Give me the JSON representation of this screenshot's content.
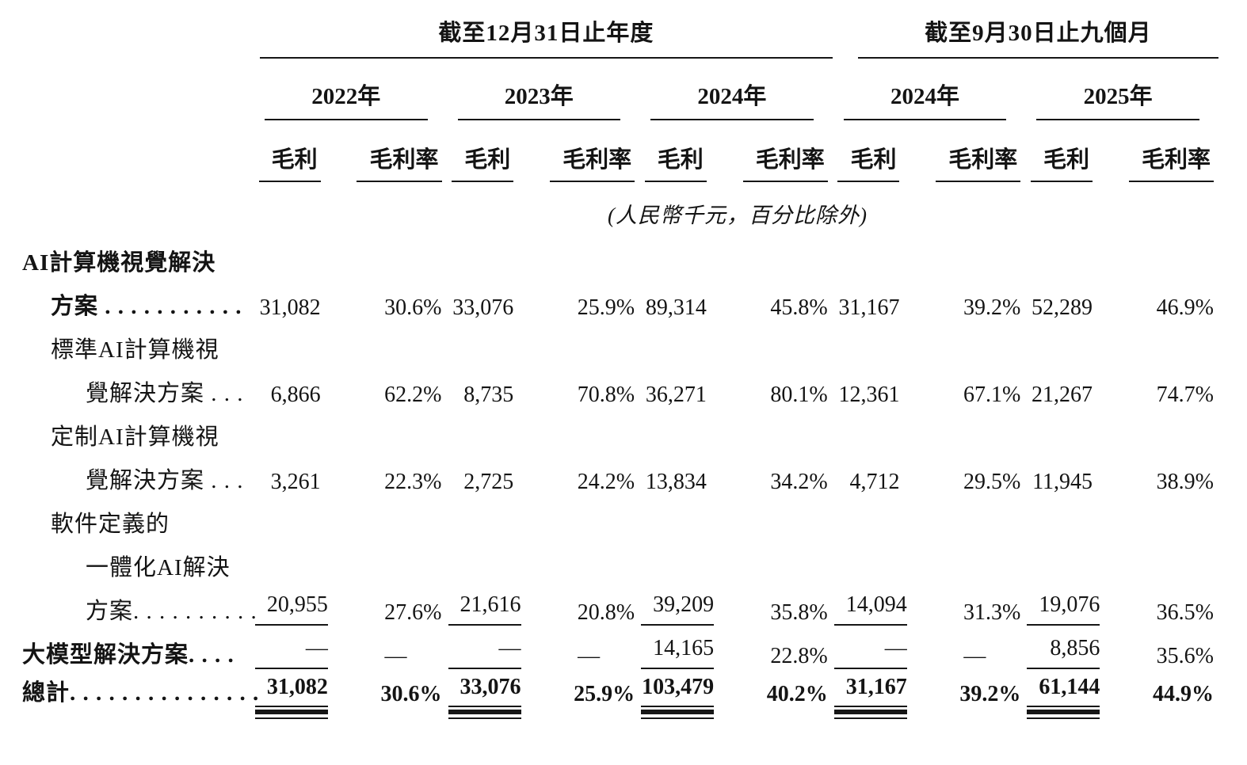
{
  "table": {
    "group1_title": "截至12月31日止年度",
    "group2_title": "截至9月30日止九個月",
    "years": [
      "2022年",
      "2023年",
      "2024年",
      "2024年",
      "2025年"
    ],
    "subcols": {
      "gp": "毛利",
      "margin": "毛利率"
    },
    "unit_note": "(人民幣千元，百分比除外)",
    "rows": [
      {
        "label": "AI計算機視覺解決"
      },
      {
        "label": "方案 . . . . . . . . . . .",
        "c": [
          "31,082",
          "30.6%",
          "33,076",
          "25.9%",
          "89,314",
          "45.8%",
          "31,167",
          "39.2%",
          "52,289",
          "46.9%"
        ]
      },
      {
        "label": "標準AI計算機視"
      },
      {
        "label": "覺解決方案 . . .",
        "c": [
          "6,866",
          "62.2%",
          "8,735",
          "70.8%",
          "36,271",
          "80.1%",
          "12,361",
          "67.1%",
          "21,267",
          "74.7%"
        ]
      },
      {
        "label": "定制AI計算機視"
      },
      {
        "label": "覺解決方案 . . .",
        "c": [
          "3,261",
          "22.3%",
          "2,725",
          "24.2%",
          "13,834",
          "34.2%",
          "4,712",
          "29.5%",
          "11,945",
          "38.9%"
        ]
      },
      {
        "label": "軟件定義的"
      },
      {
        "label": "一體化AI解決"
      },
      {
        "label": "方案. . . . . . . . . .",
        "c": [
          "20,955",
          "27.6%",
          "21,616",
          "20.8%",
          "39,209",
          "35.8%",
          "14,094",
          "31.3%",
          "19,076",
          "36.5%"
        ]
      },
      {
        "label": "大模型解決方案. . . .",
        "c": [
          "—",
          "—",
          "—",
          "—",
          "14,165",
          "22.8%",
          "—",
          "—",
          "8,856",
          "35.6%"
        ]
      },
      {
        "label": "總計. . . . . . . . . . . . . . .",
        "c": [
          "31,082",
          "30.6%",
          "33,076",
          "25.9%",
          "103,479",
          "40.2%",
          "31,167",
          "39.2%",
          "61,144",
          "44.9%"
        ]
      }
    ]
  }
}
